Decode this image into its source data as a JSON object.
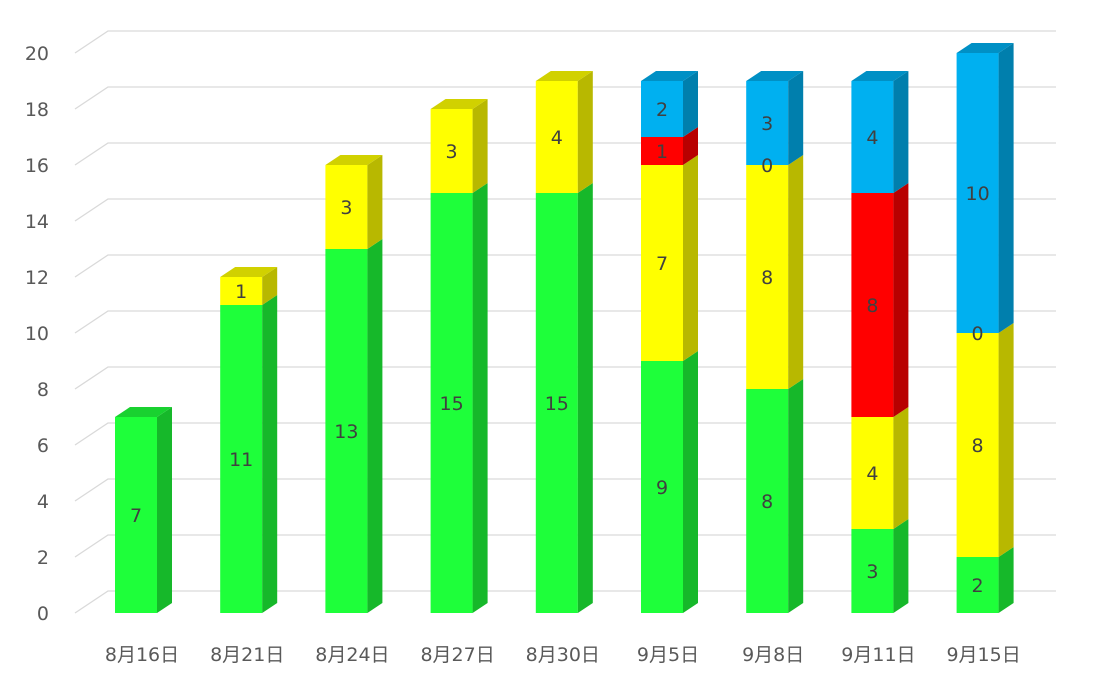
{
  "chart_data": {
    "type": "bar",
    "stacked": true,
    "three_d": true,
    "categories": [
      "8月16日",
      "8月21日",
      "8月24日",
      "8月27日",
      "8月30日",
      "9月5日",
      "9月8日",
      "9月11日",
      "9月15日"
    ],
    "series": [
      {
        "color": "#1EFF3A",
        "values": [
          7,
          11,
          13,
          15,
          15,
          9,
          8,
          3,
          2
        ]
      },
      {
        "color": "#FFFF00",
        "values": [
          null,
          1,
          3,
          3,
          4,
          7,
          8,
          4,
          8
        ]
      },
      {
        "color": "#FF0000",
        "values": [
          null,
          null,
          null,
          null,
          null,
          1,
          0,
          8,
          0
        ]
      },
      {
        "color": "#00B0F0",
        "values": [
          null,
          null,
          null,
          null,
          null,
          2,
          3,
          4,
          10
        ]
      }
    ],
    "y_ticks": [
      "0",
      "2",
      "4",
      "6",
      "8",
      "10",
      "12",
      "14",
      "16",
      "18",
      "20"
    ],
    "ylim": [
      0,
      20
    ],
    "grid": true,
    "legend": "none"
  }
}
